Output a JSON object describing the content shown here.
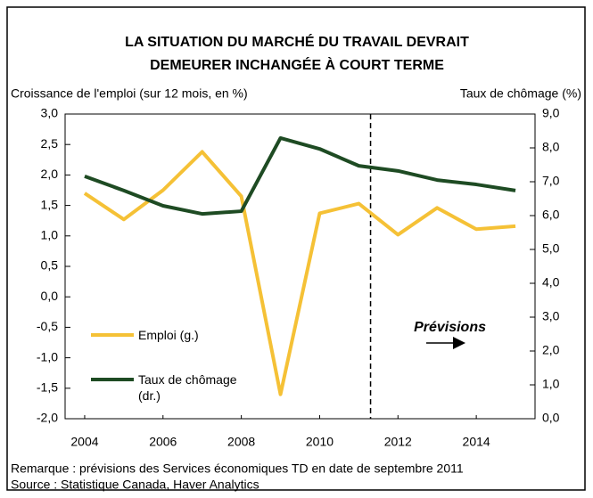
{
  "chart_data": {
    "type": "line",
    "title": [
      "LA SITUATION DU MARCHÉ DU TRAVAIL DEVRAIT",
      "DEMEURER INCHANGÉE À COURT TERME"
    ],
    "y_label": "Croissance de l'emploi (sur 12 mois, en %)",
    "y2_label": "Taux de chômage (%)",
    "x": [
      2004,
      2005,
      2006,
      2007,
      2008,
      2009,
      2010,
      2011,
      2012,
      2013,
      2014,
      2015
    ],
    "xlim": [
      2003.5,
      2015.5
    ],
    "xticks": [
      2004,
      2006,
      2008,
      2010,
      2012,
      2014
    ],
    "ylim": [
      -2,
      3
    ],
    "yticks": [
      {
        "value": 3,
        "label": "3,0"
      },
      {
        "value": 2.5,
        "label": "2,5"
      },
      {
        "value": 2,
        "label": "2,0"
      },
      {
        "value": 1.5,
        "label": "1,5"
      },
      {
        "value": 1,
        "label": "1,0"
      },
      {
        "value": 0.5,
        "label": "0,5"
      },
      {
        "value": 0,
        "label": "0,0"
      },
      {
        "value": -0.5,
        "label": "-0,5"
      },
      {
        "value": -1,
        "label": "-1,0"
      },
      {
        "value": -1.5,
        "label": "-1,5"
      },
      {
        "value": -2,
        "label": "-2,0"
      }
    ],
    "y2lim": [
      0,
      9
    ],
    "y2ticks": [
      {
        "value": 9,
        "label": "9,0"
      },
      {
        "value": 8,
        "label": "8,0"
      },
      {
        "value": 7,
        "label": "7,0"
      },
      {
        "value": 6,
        "label": "6,0"
      },
      {
        "value": 5,
        "label": "5,0"
      },
      {
        "value": 4,
        "label": "4,0"
      },
      {
        "value": 3,
        "label": "3,0"
      },
      {
        "value": 2,
        "label": "2,0"
      },
      {
        "value": 1,
        "label": "1,0"
      },
      {
        "value": 0,
        "label": "0,0"
      }
    ],
    "series": [
      {
        "name": "Emploi (g.)",
        "color": "#f5c136",
        "values": [
          1.7,
          1.27,
          1.75,
          2.38,
          1.65,
          -1.6,
          1.37,
          1.53,
          1.02,
          1.46,
          1.11,
          1.16
        ]
      },
      {
        "name": "Taux de chômage (dr.)",
        "color": "#1e4b23",
        "axis": "y2",
        "values": [
          7.16,
          6.74,
          6.29,
          6.05,
          6.13,
          8.29,
          7.97,
          7.47,
          7.32,
          7.05,
          6.92,
          6.74
        ]
      }
    ],
    "forecast_start": 2011.3,
    "annotation": "Prévisions",
    "notes": [
      "Remarque : prévisions des Services économiques TD en date de septembre 2011",
      "Source : Statistique Canada, Haver Analytics"
    ]
  }
}
